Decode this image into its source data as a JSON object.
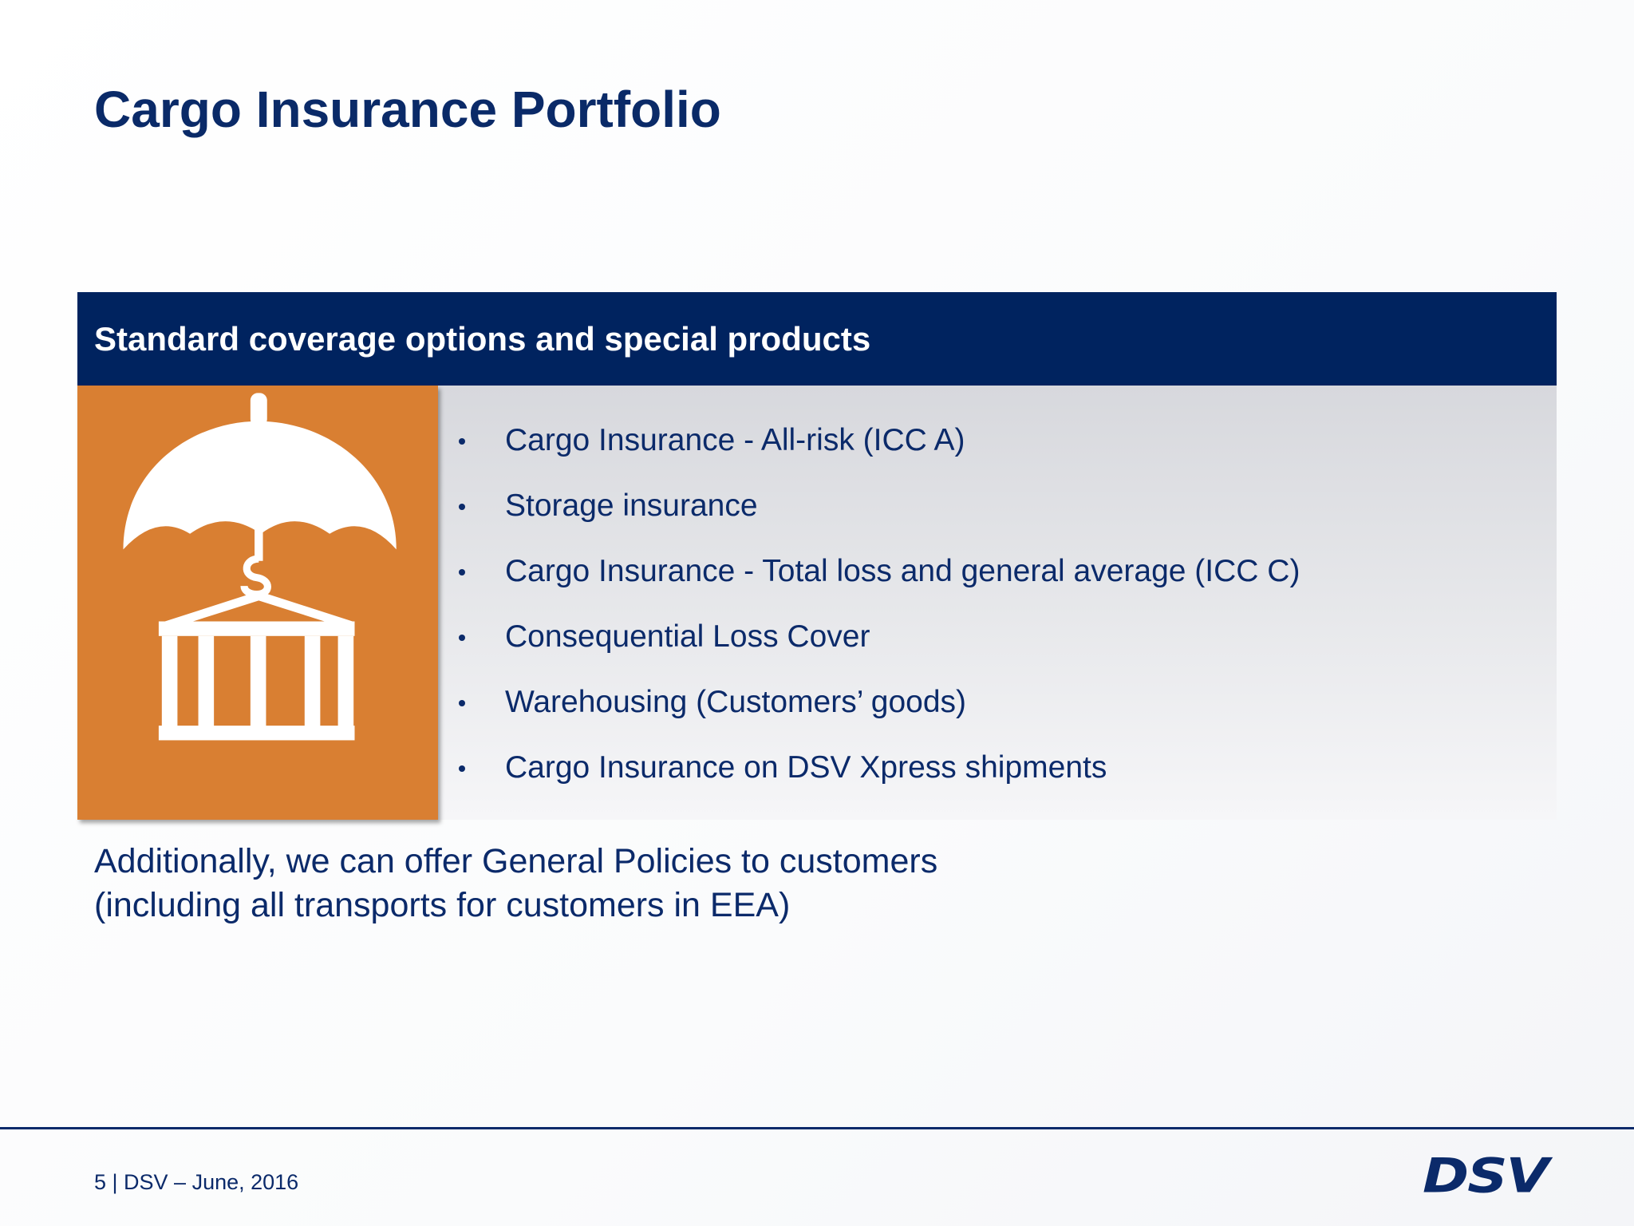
{
  "header": {
    "title": "Cargo Insurance Portfolio"
  },
  "panel": {
    "heading": "Standard coverage options and special products",
    "items": [
      "Cargo Insurance - All-risk (ICC A)",
      "Storage insurance",
      "Cargo Insurance - Total loss and general average (ICC C)",
      "Consequential Loss Cover",
      "Warehousing (Customers’ goods)",
      "Cargo Insurance on DSV Xpress shipments"
    ]
  },
  "note": {
    "lines": [
      "Additionally, we can offer General Policies to customers",
      "(including all transports for customers in EEA)"
    ]
  },
  "footer": {
    "text": "5 | DSV – June, 2016",
    "logo": "DSV"
  }
}
